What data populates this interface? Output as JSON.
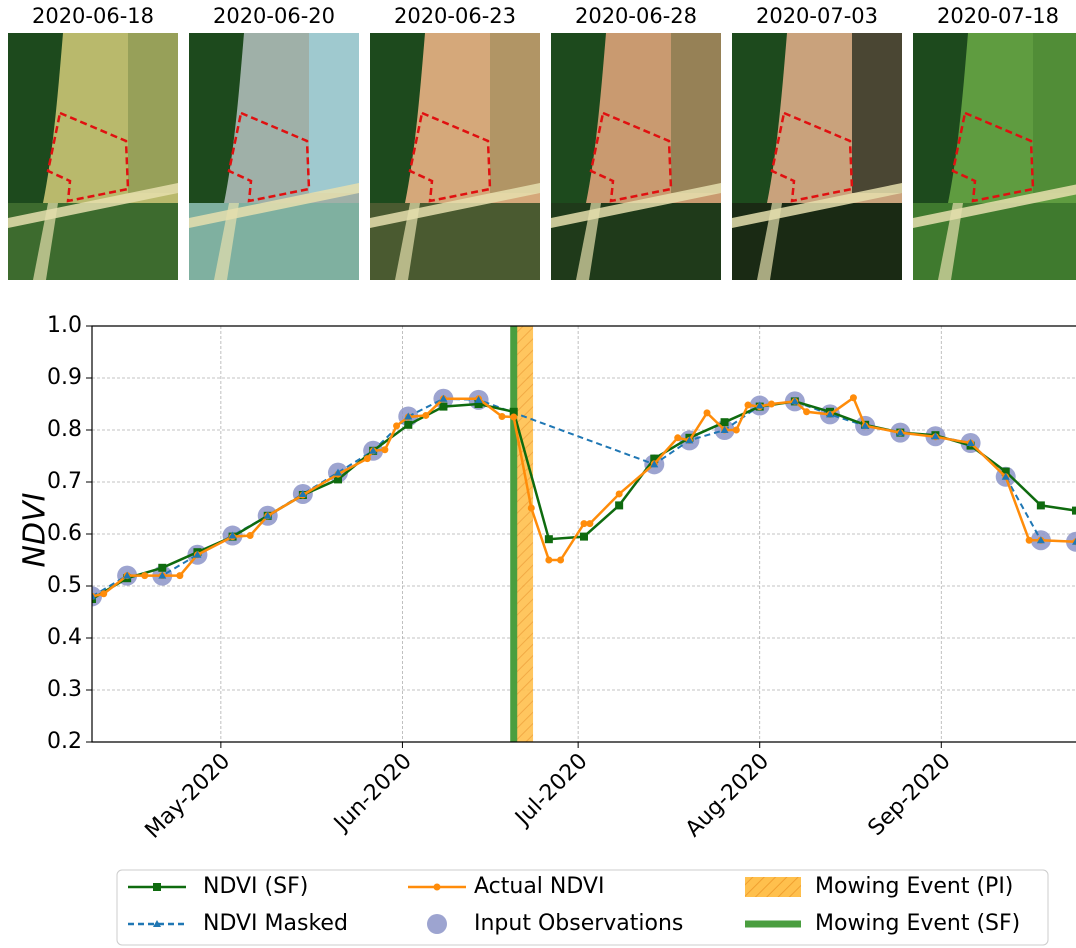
{
  "images": [
    {
      "date": "2020-06-18"
    },
    {
      "date": "2020-06-20"
    },
    {
      "date": "2020-06-23"
    },
    {
      "date": "2020-06-28"
    },
    {
      "date": "2020-07-03"
    },
    {
      "date": "2020-07-18"
    }
  ],
  "chart_data": {
    "type": "line",
    "y_label": "NDVI",
    "xlim": [
      100,
      268
    ],
    "xticks": [
      {
        "value": 122,
        "label": "May-2020"
      },
      {
        "value": 153,
        "label": "Jun-2020"
      },
      {
        "value": 183,
        "label": "Jul-2020"
      },
      {
        "value": 214,
        "label": "Aug-2020"
      },
      {
        "value": 245,
        "label": "Sep-2020"
      }
    ],
    "ylim": [
      0.2,
      1.0
    ],
    "yticks": [
      0.2,
      0.3,
      0.4,
      0.5,
      0.6,
      0.7,
      0.8,
      0.9,
      {
        "value": 1.0,
        "label": "1.0"
      }
    ],
    "grid": true,
    "legend": "bottom",
    "series": [
      {
        "name": "NDVI (SF)",
        "color": "#0f6b0f",
        "marker": "square",
        "linestyle": "solid",
        "x": [
          100,
          106,
          112,
          118,
          124,
          130,
          136,
          142,
          148,
          154,
          160,
          166,
          172,
          178,
          184,
          190,
          196,
          202,
          208,
          214,
          220,
          226,
          232,
          238,
          244,
          250,
          256,
          262,
          268
        ],
        "values": [
          0.475,
          0.515,
          0.535,
          0.565,
          0.595,
          0.635,
          0.675,
          0.705,
          0.76,
          0.81,
          0.845,
          0.85,
          0.835,
          0.59,
          0.595,
          0.655,
          0.745,
          0.785,
          0.815,
          0.845,
          0.855,
          0.835,
          0.81,
          0.795,
          0.79,
          0.77,
          0.72,
          0.655,
          0.645
        ]
      },
      {
        "name": "NDVI Masked",
        "color": "#1f77b4",
        "marker": "triangle",
        "linestyle": "dashed",
        "x": [
          100,
          106,
          112,
          118,
          124,
          130,
          136,
          142,
          148,
          154,
          160,
          166,
          196,
          202,
          208,
          214,
          220,
          226,
          232,
          238,
          244,
          250,
          256,
          262,
          268
        ],
        "values": [
          0.48,
          0.52,
          0.52,
          0.56,
          0.597,
          0.635,
          0.677,
          0.718,
          0.76,
          0.826,
          0.86,
          0.858,
          0.734,
          0.78,
          0.8,
          0.847,
          0.855,
          0.83,
          0.808,
          0.795,
          0.788,
          0.775,
          0.71,
          0.588,
          0.585
        ]
      },
      {
        "name": "Actual NDVI",
        "color": "#ff8c0a",
        "marker": "dot",
        "linestyle": "solid",
        "x": [
          100,
          102,
          106,
          109,
          112,
          115,
          118,
          124,
          127,
          130,
          136,
          142,
          147,
          148,
          150,
          152,
          154,
          157,
          160,
          166,
          170,
          172,
          175,
          178,
          180,
          184,
          185,
          190,
          196,
          200,
          202,
          205,
          208,
          210,
          212,
          214,
          216,
          220,
          222,
          226,
          230,
          232,
          238,
          244,
          250,
          256,
          260,
          262,
          268
        ],
        "values": [
          0.48,
          0.485,
          0.52,
          0.52,
          0.52,
          0.52,
          0.56,
          0.595,
          0.597,
          0.635,
          0.675,
          0.715,
          0.745,
          0.76,
          0.762,
          0.808,
          0.825,
          0.828,
          0.86,
          0.86,
          0.826,
          0.825,
          0.65,
          0.55,
          0.55,
          0.62,
          0.62,
          0.677,
          0.735,
          0.785,
          0.78,
          0.833,
          0.8,
          0.8,
          0.848,
          0.845,
          0.85,
          0.855,
          0.835,
          0.83,
          0.862,
          0.808,
          0.795,
          0.787,
          0.775,
          0.71,
          0.588,
          0.588,
          0.585
        ]
      },
      {
        "name": "Input Observations",
        "color": "#8c94c8",
        "marker": "circle",
        "linestyle": "none",
        "x": [
          100,
          106,
          112,
          118,
          124,
          130,
          136,
          142,
          148,
          154,
          160,
          166,
          196,
          202,
          208,
          214,
          220,
          226,
          232,
          238,
          244,
          250,
          256,
          262,
          268
        ],
        "values": [
          0.48,
          0.52,
          0.52,
          0.56,
          0.597,
          0.635,
          0.677,
          0.718,
          0.76,
          0.826,
          0.86,
          0.858,
          0.734,
          0.78,
          0.8,
          0.847,
          0.855,
          0.83,
          0.808,
          0.795,
          0.788,
          0.775,
          0.71,
          0.588,
          0.585
        ]
      }
    ],
    "events": [
      {
        "name": "Mowing Event (PI)",
        "color": "#ffc04d",
        "range": [
          172.4,
          175.3
        ]
      },
      {
        "name": "Mowing Event (SF)",
        "color": "#4a9e3f",
        "x": 172
      }
    ]
  }
}
